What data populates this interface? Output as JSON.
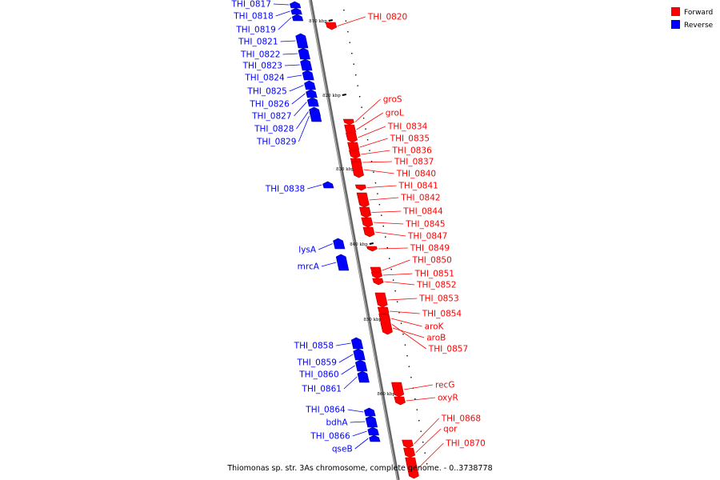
{
  "colors": {
    "forward": "#ff0000",
    "reverse": "#0000ff",
    "backbone": "#888888",
    "leader": "#000000"
  },
  "legend": [
    {
      "label": "Forward",
      "color": "#ff0000"
    },
    {
      "label": "Reverse",
      "color": "#0000ff"
    }
  ],
  "caption": "Thiomonas sp. str. 3As chromosome, complete genome. - 0..3738778",
  "ticks": [
    "810 kbp",
    "820 kbp",
    "830 kbp",
    "840 kbp",
    "850 kbp",
    "860 kbp"
  ],
  "genes": [
    {
      "label": "THI_0817",
      "strand": "reverse"
    },
    {
      "label": "THI_0818",
      "strand": "reverse"
    },
    {
      "label": "THI_0819",
      "strand": "reverse"
    },
    {
      "label": "THI_0820",
      "strand": "forward"
    },
    {
      "label": "THI_0821",
      "strand": "reverse"
    },
    {
      "label": "THI_0822",
      "strand": "reverse"
    },
    {
      "label": "THI_0823",
      "strand": "reverse"
    },
    {
      "label": "THI_0824",
      "strand": "reverse"
    },
    {
      "label": "THI_0825",
      "strand": "reverse"
    },
    {
      "label": "THI_0826",
      "strand": "reverse"
    },
    {
      "label": "THI_0827",
      "strand": "reverse"
    },
    {
      "label": "THI_0828",
      "strand": "reverse"
    },
    {
      "label": "THI_0829",
      "strand": "reverse"
    },
    {
      "label": "groS",
      "strand": "forward"
    },
    {
      "label": "groL",
      "strand": "forward"
    },
    {
      "label": "THI_0834",
      "strand": "forward"
    },
    {
      "label": "THI_0835",
      "strand": "forward"
    },
    {
      "label": "THI_0836",
      "strand": "forward"
    },
    {
      "label": "THI_0837",
      "strand": "forward"
    },
    {
      "label": "THI_0840",
      "strand": "forward"
    },
    {
      "label": "THI_0838",
      "strand": "reverse"
    },
    {
      "label": "THI_0841",
      "strand": "forward"
    },
    {
      "label": "THI_0842",
      "strand": "forward"
    },
    {
      "label": "THI_0844",
      "strand": "forward"
    },
    {
      "label": "THI_0845",
      "strand": "forward"
    },
    {
      "label": "THI_0847",
      "strand": "forward"
    },
    {
      "label": "lysA",
      "strand": "reverse"
    },
    {
      "label": "THI_0849",
      "strand": "forward"
    },
    {
      "label": "THI_0850",
      "strand": "forward"
    },
    {
      "label": "mrcA",
      "strand": "reverse"
    },
    {
      "label": "THI_0851",
      "strand": "forward"
    },
    {
      "label": "THI_0852",
      "strand": "forward"
    },
    {
      "label": "THI_0853",
      "strand": "forward"
    },
    {
      "label": "THI_0854",
      "strand": "forward"
    },
    {
      "label": "aroK",
      "strand": "forward"
    },
    {
      "label": "aroB",
      "strand": "forward"
    },
    {
      "label": "THI_0857",
      "strand": "forward"
    },
    {
      "label": "THI_0858",
      "strand": "reverse"
    },
    {
      "label": "THI_0859",
      "strand": "reverse"
    },
    {
      "label": "THI_0860",
      "strand": "reverse"
    },
    {
      "label": "THI_0861",
      "strand": "reverse"
    },
    {
      "label": "recG",
      "strand": "forward"
    },
    {
      "label": "oxyR",
      "strand": "forward"
    },
    {
      "label": "THI_0864",
      "strand": "reverse"
    },
    {
      "label": "bdhA",
      "strand": "reverse"
    },
    {
      "label": "THI_0866",
      "strand": "reverse"
    },
    {
      "label": "qseB",
      "strand": "reverse"
    },
    {
      "label": "THI_0868",
      "strand": "forward"
    },
    {
      "label": "qor",
      "strand": "forward"
    },
    {
      "label": "THI_0870",
      "strand": "forward"
    }
  ]
}
